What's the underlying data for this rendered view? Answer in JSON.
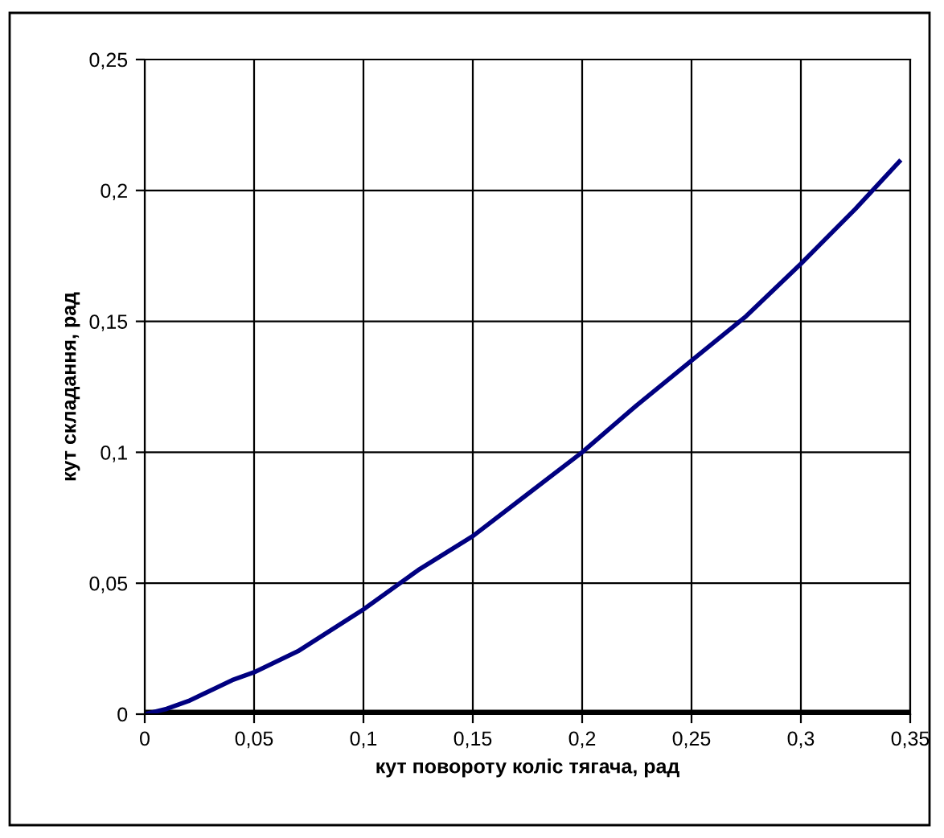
{
  "chart_data": {
    "type": "line",
    "xlabel": "кут повороту коліс тягача, рад",
    "ylabel": "кут складання, рад",
    "x": [
      0,
      0.01,
      0.02,
      0.03,
      0.04,
      0.05,
      0.07,
      0.1,
      0.125,
      0.15,
      0.175,
      0.2,
      0.225,
      0.25,
      0.275,
      0.3,
      0.325,
      0.345
    ],
    "series": [
      {
        "color": "#000080",
        "values": [
          0,
          0.002,
          0.005,
          0.009,
          0.013,
          0.016,
          0.024,
          0.04,
          0.055,
          0.068,
          0.084,
          0.1,
          0.118,
          0.135,
          0.152,
          0.172,
          0.193,
          0.211
        ]
      }
    ],
    "xlim": [
      0,
      0.35
    ],
    "ylim": [
      0,
      0.25
    ],
    "xticks": [
      0,
      {
        "value": 0.05,
        "label": "0,05"
      },
      {
        "value": 0.1,
        "label": "0,1"
      },
      {
        "value": 0.15,
        "label": "0,15"
      },
      {
        "value": 0.2,
        "label": "0,2"
      },
      {
        "value": 0.25,
        "label": "0,25"
      },
      {
        "value": 0.3,
        "label": "0,3"
      },
      {
        "value": 0.35,
        "label": "0,35"
      }
    ],
    "yticks": [
      0,
      {
        "value": 0.05,
        "label": "0,05"
      },
      {
        "value": 0.1,
        "label": "0,1"
      },
      {
        "value": 0.15,
        "label": "0,15"
      },
      {
        "value": 0.2,
        "label": "0,2"
      },
      {
        "value": 0.25,
        "label": "0,25"
      }
    ],
    "grid": true,
    "legend": false,
    "marker": "none",
    "line_style": "solid"
  }
}
